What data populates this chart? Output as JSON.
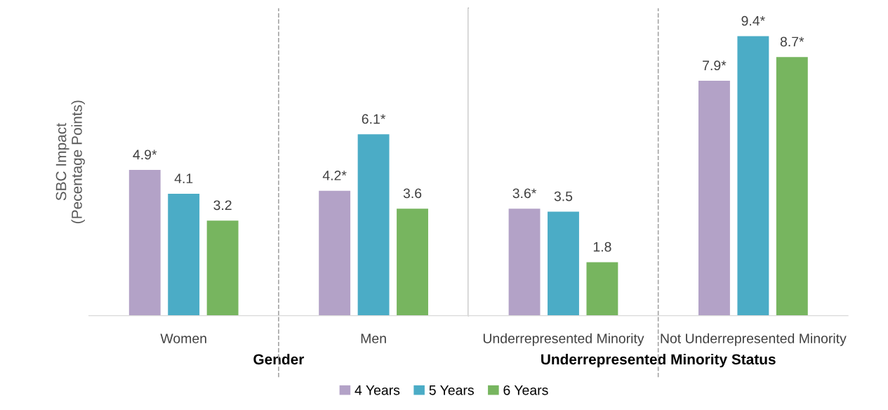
{
  "chart_data": [
    {
      "type": "bar",
      "ylabel": "SBC Impact\n(Pecentage Points)",
      "xlabel": "Gender",
      "categories": [
        "Women",
        "Men"
      ],
      "series": [
        {
          "name": "4 Years",
          "color": "#b3a2c7",
          "values": [
            4.9,
            4.2
          ],
          "value_labels": [
            "4.9*",
            "4.2*"
          ]
        },
        {
          "name": "5 Years",
          "color": "#4bacc6",
          "values": [
            4.1,
            6.1
          ],
          "value_labels": [
            "4.1",
            "6.1*"
          ]
        },
        {
          "name": "6 Years",
          "color": "#77b55f",
          "values": [
            3.2,
            3.6
          ],
          "value_labels": [
            "3.2",
            "3.6"
          ]
        }
      ],
      "legend": "bottom"
    },
    {
      "type": "bar",
      "xlabel": "Underrepresented Minority Status",
      "categories": [
        "Underrepresented Minority",
        "Not Underrepresented Minority"
      ],
      "series": [
        {
          "color": "#b3a2c7",
          "values": [
            3.6,
            7.9
          ],
          "value_labels": [
            "3.6*",
            "7.9*"
          ]
        },
        {
          "color": "#4bacc6",
          "values": [
            3.5,
            9.4
          ],
          "value_labels": [
            "3.5",
            "9.4*"
          ]
        },
        {
          "color": "#77b55f",
          "values": [
            1.8,
            8.7
          ],
          "value_labels": [
            "1.8",
            "8.7*"
          ]
        }
      ]
    }
  ]
}
